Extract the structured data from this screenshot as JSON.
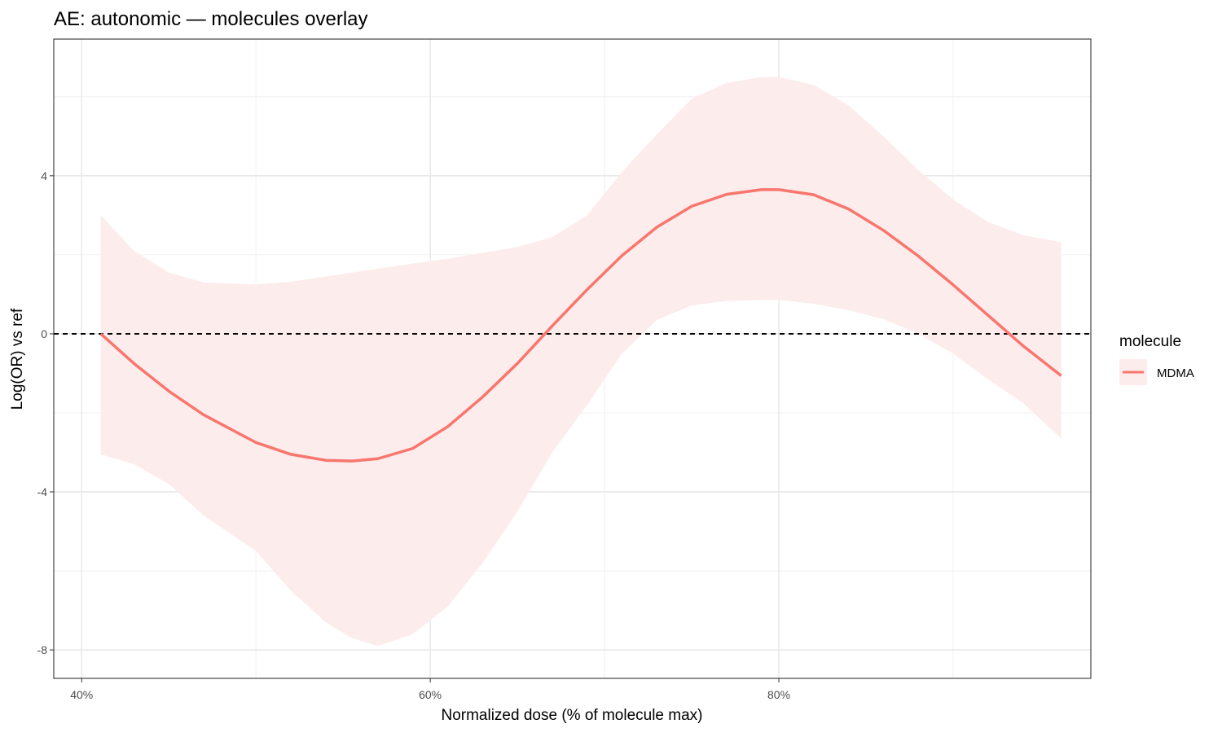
{
  "chart_data": {
    "type": "line",
    "title": "AE: autonomic — molecules overlay",
    "xlabel": "Normalized dose (% of molecule max)",
    "ylabel": "Log(OR) vs ref",
    "xlim": [
      38.4,
      97.9
    ],
    "ylim": [
      -8.72,
      7.46
    ],
    "x_ticks": [
      40,
      60,
      80
    ],
    "x_tick_labels": [
      "40%",
      "60%",
      "80%"
    ],
    "y_ticks": [
      -8,
      -4,
      0,
      4
    ],
    "y_tick_labels": [
      "-8",
      "-4",
      "0",
      "4"
    ],
    "grid": true,
    "reference_line": {
      "y": 0,
      "style": "dashed",
      "color": "#000000"
    },
    "legend": {
      "title": "molecule",
      "placement": "right"
    },
    "series": [
      {
        "name": "MDMA",
        "color": "#F8766D",
        "ribbon_color": "#FDECEC",
        "x": [
          41.1,
          43,
          45,
          47,
          50,
          52,
          54,
          55.5,
          57,
          59,
          61,
          63,
          65,
          67,
          69,
          71,
          73,
          75,
          77,
          79,
          80,
          82,
          84,
          86,
          88,
          90,
          92,
          94,
          96.2
        ],
        "y": [
          0,
          -0.75,
          -1.45,
          -2.05,
          -2.75,
          -3.05,
          -3.2,
          -3.22,
          -3.16,
          -2.9,
          -2.35,
          -1.6,
          -0.75,
          0.2,
          1.12,
          1.98,
          2.7,
          3.23,
          3.53,
          3.65,
          3.65,
          3.52,
          3.16,
          2.62,
          1.97,
          1.24,
          0.47,
          -0.3,
          -1.06
        ],
        "lower": [
          -3.05,
          -3.3,
          -3.8,
          -4.6,
          -5.5,
          -6.5,
          -7.3,
          -7.7,
          -7.9,
          -7.6,
          -6.9,
          -5.8,
          -4.5,
          -3.0,
          -1.8,
          -0.5,
          0.35,
          0.72,
          0.83,
          0.86,
          0.86,
          0.76,
          0.6,
          0.37,
          0.0,
          -0.5,
          -1.15,
          -1.75,
          -2.65
        ],
        "upper": [
          3.0,
          2.1,
          1.55,
          1.3,
          1.25,
          1.32,
          1.45,
          1.55,
          1.65,
          1.78,
          1.9,
          2.05,
          2.2,
          2.45,
          3.0,
          4.1,
          5.05,
          5.95,
          6.35,
          6.5,
          6.5,
          6.3,
          5.78,
          5.0,
          4.15,
          3.4,
          2.83,
          2.5,
          2.32
        ]
      }
    ]
  }
}
